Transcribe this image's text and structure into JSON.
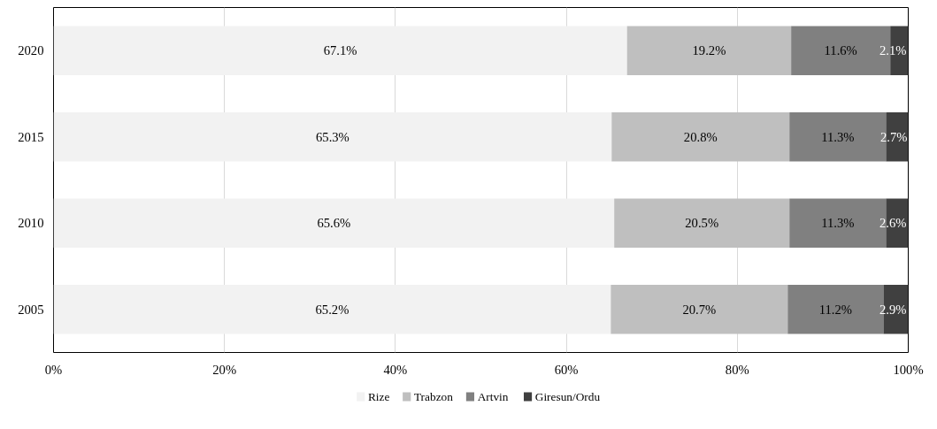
{
  "chart_data": {
    "type": "bar",
    "orientation": "horizontal",
    "stacked": true,
    "categories": [
      "2020",
      "2015",
      "2010",
      "2005"
    ],
    "series": [
      {
        "name": "Rize",
        "color": "#f2f2f2",
        "values": [
          67.1,
          65.3,
          65.6,
          65.2
        ],
        "value_labels": [
          "67.1%",
          "65.3%",
          "65.6%",
          "65.2%"
        ]
      },
      {
        "name": "Trabzon",
        "color": "#bfbfbf",
        "values": [
          19.2,
          20.8,
          20.5,
          20.7
        ],
        "value_labels": [
          "19.2%",
          "20.8%",
          "20.5%",
          "20.7%"
        ]
      },
      {
        "name": "Artvin",
        "color": "#808080",
        "values": [
          11.6,
          11.3,
          11.3,
          11.2
        ],
        "value_labels": [
          "11.6%",
          "11.3%",
          "11.3%",
          "11.2%"
        ]
      },
      {
        "name": "Giresun/Ordu",
        "color": "#404040",
        "values": [
          2.1,
          2.7,
          2.6,
          2.9
        ],
        "value_labels": [
          "2.1%",
          "2.7%",
          "2.6%",
          "2.9%"
        ]
      }
    ],
    "xlim": [
      0,
      100
    ],
    "xticks": [
      {
        "value": 0,
        "label": "0%"
      },
      {
        "value": 20,
        "label": "20%"
      },
      {
        "value": 40,
        "label": "40%"
      },
      {
        "value": 60,
        "label": "60%"
      },
      {
        "value": 80,
        "label": "80%"
      },
      {
        "value": 100,
        "label": "100%"
      }
    ],
    "grid": "x",
    "legend": "bottom"
  }
}
